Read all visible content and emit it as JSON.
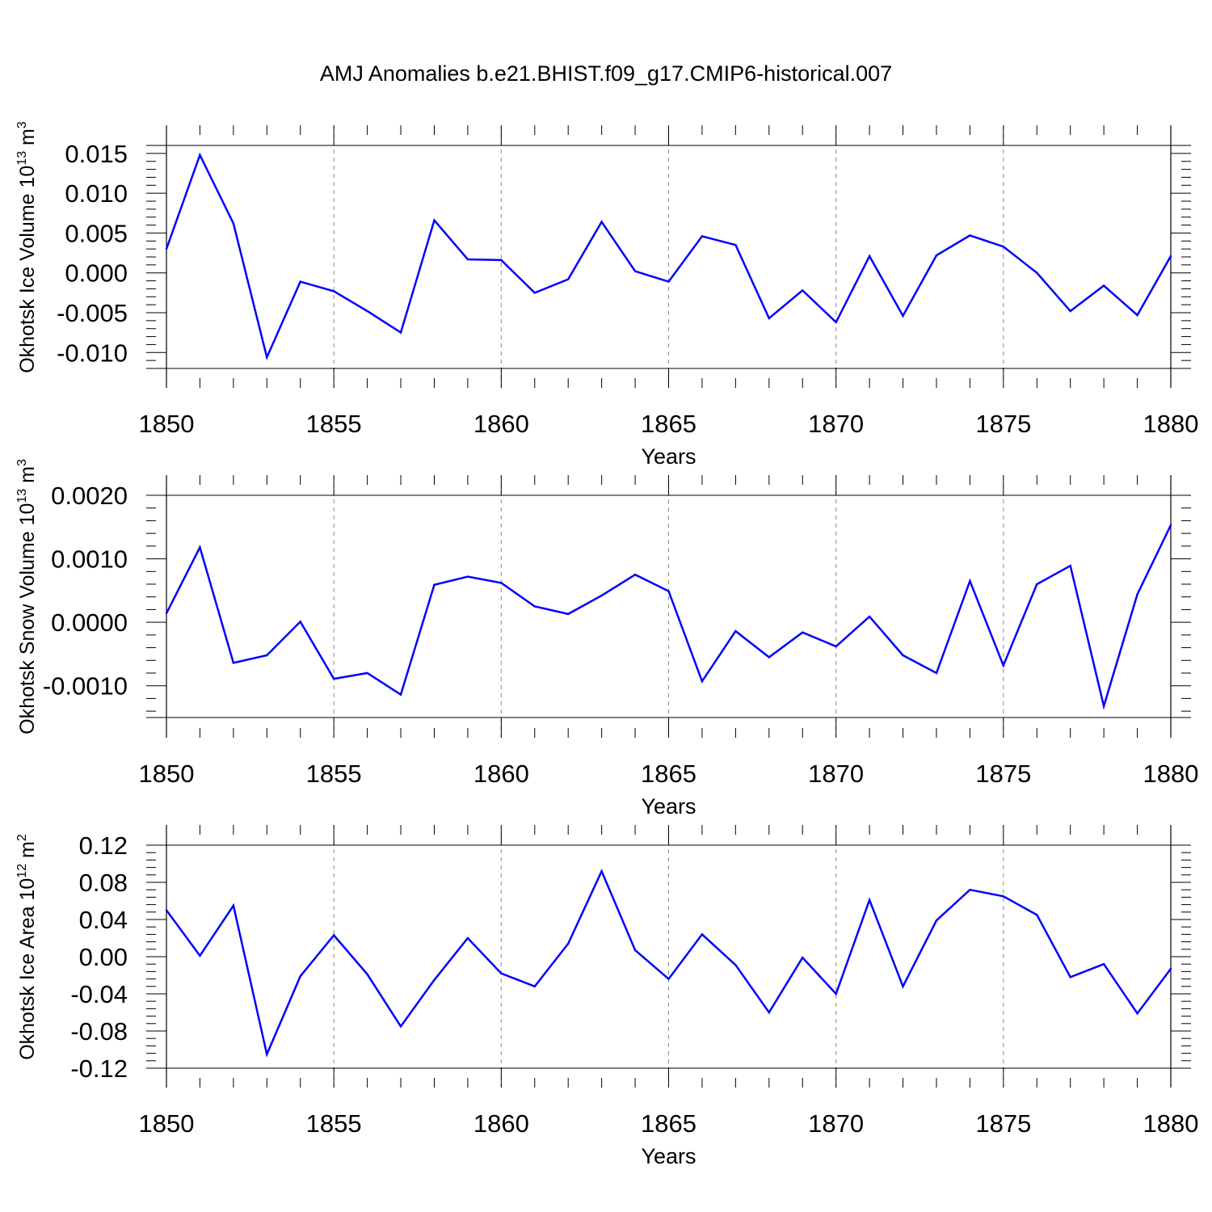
{
  "title": "AMJ Anomalies b.e21.BHIST.f09_g17.CMIP6-historical.007",
  "colors": {
    "line": "#0000ff",
    "axis": "#000000",
    "grid": "#888888"
  },
  "chart_data": [
    {
      "type": "line",
      "ylabel": {
        "main": "Okhotsk Ice Volume 10",
        "exp": "13",
        "unit": " m",
        "unit_exp": "3"
      },
      "xlabel": "Years",
      "x": [
        1850,
        1851,
        1852,
        1853,
        1854,
        1855,
        1856,
        1857,
        1858,
        1859,
        1860,
        1861,
        1862,
        1863,
        1864,
        1865,
        1866,
        1867,
        1868,
        1869,
        1870,
        1871,
        1872,
        1873,
        1874,
        1875,
        1876,
        1877,
        1878,
        1879,
        1880
      ],
      "values": [
        0.003,
        0.0148,
        0.0062,
        -0.0106,
        -0.0011,
        -0.0023,
        -0.0048,
        -0.0075,
        0.0066,
        0.0017,
        0.0016,
        -0.0025,
        -0.0008,
        0.0064,
        0.0002,
        -0.0011,
        0.0046,
        0.0035,
        -0.0057,
        -0.0022,
        -0.0062,
        0.0021,
        -0.0054,
        0.0022,
        0.0047,
        0.0033,
        0.0,
        -0.0048,
        -0.0016,
        -0.0053,
        0.0021
      ],
      "ylim": [
        -0.012,
        0.016
      ],
      "yticks": [
        -0.01,
        -0.005,
        0.0,
        0.005,
        0.01,
        0.015
      ],
      "ytick_labels": [
        "-0.010",
        "-0.005",
        "0.000",
        "0.005",
        "0.010",
        "0.015"
      ],
      "xlim": [
        1850,
        1880
      ],
      "xticks": [
        1850,
        1855,
        1860,
        1865,
        1870,
        1875,
        1880
      ],
      "xtick_labels": [
        "1850",
        "1855",
        "1860",
        "1865",
        "1870",
        "1875",
        "1880"
      ]
    },
    {
      "type": "line",
      "ylabel": {
        "main": "Okhotsk Snow Volume 10",
        "exp": "13",
        "unit": " m",
        "unit_exp": "3"
      },
      "xlabel": "Years",
      "x": [
        1850,
        1851,
        1852,
        1853,
        1854,
        1855,
        1856,
        1857,
        1858,
        1859,
        1860,
        1861,
        1862,
        1863,
        1864,
        1865,
        1866,
        1867,
        1868,
        1869,
        1870,
        1871,
        1872,
        1873,
        1874,
        1875,
        1876,
        1877,
        1878,
        1879,
        1880
      ],
      "values": [
        0.00014,
        0.00118,
        -0.00064,
        -0.00052,
        1e-05,
        -0.00089,
        -0.0008,
        -0.00114,
        0.00059,
        0.00072,
        0.00062,
        0.00025,
        0.00013,
        0.00042,
        0.00075,
        0.00049,
        -0.00093,
        -0.00014,
        -0.00055,
        -0.00016,
        -0.00038,
        9e-05,
        -0.00052,
        -0.0008,
        0.00065,
        -0.00068,
        0.0006,
        0.00089,
        -0.00132,
        0.00044,
        0.00153
      ],
      "ylim": [
        -0.0015,
        0.002
      ],
      "yticks": [
        -0.001,
        0.0,
        0.001,
        0.002
      ],
      "ytick_labels": [
        "-0.0010",
        "0.0000",
        "0.0010",
        "0.0020"
      ],
      "xlim": [
        1850,
        1880
      ],
      "xticks": [
        1850,
        1855,
        1860,
        1865,
        1870,
        1875,
        1880
      ],
      "xtick_labels": [
        "1850",
        "1855",
        "1860",
        "1865",
        "1870",
        "1875",
        "1880"
      ]
    },
    {
      "type": "line",
      "ylabel": {
        "main": "Okhotsk Ice Area 10",
        "exp": "12",
        "unit": " m",
        "unit_exp": "2"
      },
      "xlabel": "Years",
      "x": [
        1850,
        1851,
        1852,
        1853,
        1854,
        1855,
        1856,
        1857,
        1858,
        1859,
        1860,
        1861,
        1862,
        1863,
        1864,
        1865,
        1866,
        1867,
        1868,
        1869,
        1870,
        1871,
        1872,
        1873,
        1874,
        1875,
        1876,
        1877,
        1878,
        1879,
        1880
      ],
      "values": [
        0.05,
        0.001,
        0.055,
        -0.105,
        -0.021,
        0.023,
        -0.019,
        -0.075,
        -0.025,
        0.02,
        -0.018,
        -0.032,
        0.014,
        0.092,
        0.007,
        -0.024,
        0.024,
        -0.009,
        -0.06,
        -0.001,
        -0.04,
        0.061,
        -0.032,
        0.039,
        0.072,
        0.065,
        0.045,
        -0.022,
        -0.008,
        -0.061,
        -0.013
      ],
      "ylim": [
        -0.12,
        0.12
      ],
      "yticks": [
        -0.12,
        -0.08,
        -0.04,
        0.0,
        0.04,
        0.08,
        0.12
      ],
      "ytick_labels": [
        "-0.12",
        "-0.08",
        "-0.04",
        "0.00",
        "0.04",
        "0.08",
        "0.12"
      ],
      "xlim": [
        1850,
        1880
      ],
      "xticks": [
        1850,
        1855,
        1860,
        1865,
        1870,
        1875,
        1880
      ],
      "xtick_labels": [
        "1850",
        "1855",
        "1860",
        "1865",
        "1870",
        "1875",
        "1880"
      ]
    }
  ]
}
